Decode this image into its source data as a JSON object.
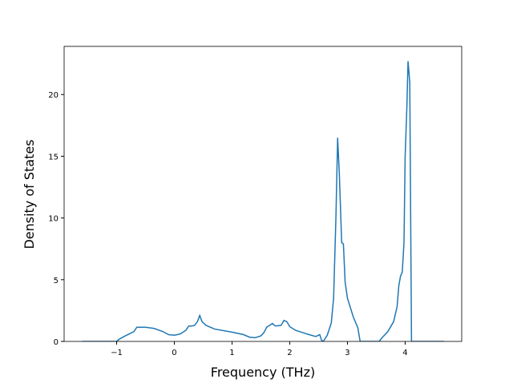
{
  "chart_data": {
    "type": "line",
    "x_label": "Frequency (THz)",
    "y_label": "Density of States",
    "x": [
      -1.6,
      -1.0,
      -0.95,
      -0.85,
      -0.7,
      -0.65,
      -0.5,
      -0.35,
      -0.2,
      -0.1,
      0,
      0.1,
      0.2,
      0.25,
      0.3,
      0.35,
      0.4,
      0.44,
      0.48,
      0.55,
      0.7,
      1.0,
      1.2,
      1.3,
      1.4,
      1.5,
      1.55,
      1.6,
      1.7,
      1.75,
      1.85,
      1.9,
      1.95,
      2.0,
      2.1,
      2.3,
      2.45,
      2.52,
      2.55,
      2.58,
      2.65,
      2.72,
      2.76,
      2.8,
      2.83,
      2.86,
      2.9,
      2.93,
      2.96,
      3.0,
      3.1,
      3.18,
      3.22,
      3.55,
      3.6,
      3.7,
      3.8,
      3.86,
      3.89,
      3.92,
      3.95,
      3.98,
      4.0,
      4.03,
      4.05,
      4.08,
      4.11,
      4.67
    ],
    "series": [
      {
        "color": "#1f77b4",
        "values": [
          0,
          0,
          0.2,
          0.45,
          0.8,
          1.15,
          1.15,
          1.05,
          0.8,
          0.55,
          0.5,
          0.6,
          0.9,
          1.25,
          1.25,
          1.3,
          1.6,
          2.1,
          1.6,
          1.3,
          1.0,
          0.75,
          0.55,
          0.35,
          0.3,
          0.45,
          0.7,
          1.15,
          1.45,
          1.25,
          1.3,
          1.7,
          1.6,
          1.2,
          0.9,
          0.6,
          0.4,
          0.55,
          0.1,
          0,
          0.5,
          1.5,
          3.5,
          10,
          16.5,
          13.5,
          8,
          7.9,
          4.8,
          3.5,
          2,
          1.1,
          0,
          0,
          0.3,
          0.8,
          1.6,
          2.8,
          4.5,
          5.3,
          5.6,
          8,
          15,
          19,
          22.7,
          21,
          0,
          0
        ]
      }
    ],
    "xlim": [
      -1.91,
      4.98
    ],
    "ylim": [
      0,
      23.9
    ],
    "xticks": [
      {
        "value": -1,
        "label": "−1"
      },
      0,
      1,
      2,
      3,
      4
    ],
    "yticks": [
      0,
      5,
      10,
      15,
      20
    ],
    "grid": false
  }
}
